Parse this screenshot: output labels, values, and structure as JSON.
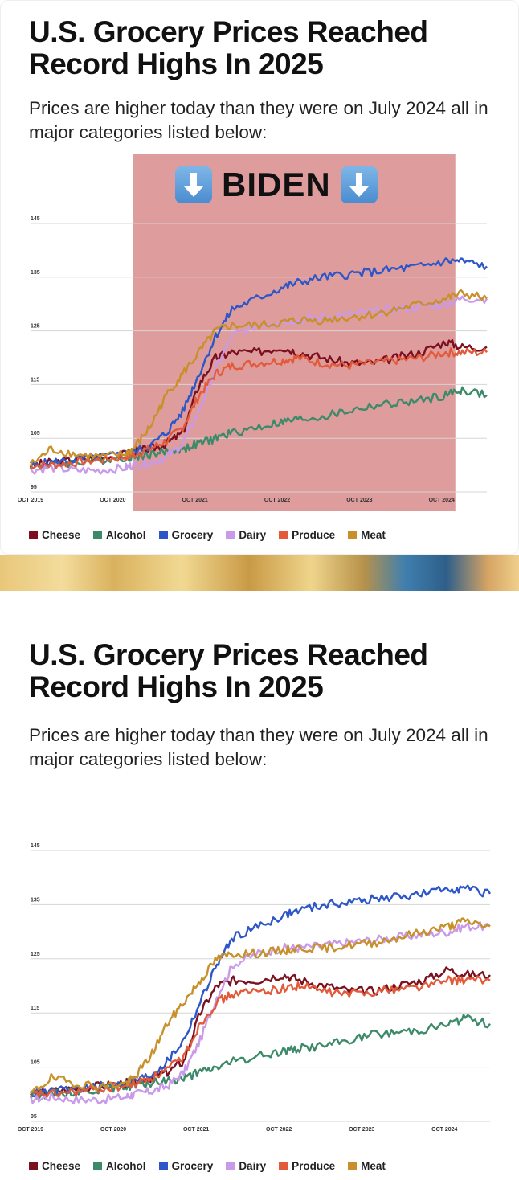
{
  "chart_data": [
    {
      "type": "line",
      "title": "U.S. Grocery Prices Reached Record Highs In 2025",
      "subtitle": "Prices are higher today than they were on July 2024 all in major categories listed below:",
      "annotation": "BIDEN",
      "highlight_range": [
        "2021-01",
        "2024-12"
      ],
      "highlight_color": "#d98b8b",
      "x_ticks": [
        "OCT 2019",
        "OCT 2020",
        "OCT 2021",
        "OCT 2022",
        "OCT 2023",
        "OCT 2024"
      ],
      "y_ticks": [
        95,
        105,
        115,
        125,
        135,
        145
      ],
      "ylim": [
        95,
        145
      ],
      "xlim": [
        2019.75,
        2025.3
      ],
      "grid": true,
      "legend_position": "bottom",
      "x": [
        2019.75,
        2020.0,
        2020.3,
        2020.6,
        2020.9,
        2021.0,
        2021.2,
        2021.4,
        2021.6,
        2021.8,
        2022.0,
        2022.2,
        2022.5,
        2022.8,
        2023.0,
        2023.3,
        2023.6,
        2023.9,
        2024.2,
        2024.5,
        2024.8,
        2025.0,
        2025.3
      ],
      "series": [
        {
          "name": "Cheese",
          "color": "#7a1020",
          "values": [
            100,
            100.5,
            101,
            101.5,
            102,
            102.5,
            103,
            104,
            106,
            115,
            120,
            121,
            121,
            122,
            121,
            120,
            119,
            119,
            120,
            121,
            123,
            122,
            122
          ]
        },
        {
          "name": "Alcohol",
          "color": "#3d8a6a",
          "values": [
            100,
            100,
            100.5,
            101,
            101.5,
            101.5,
            102,
            102.5,
            103,
            104,
            105,
            106,
            107,
            108,
            108.5,
            109,
            110,
            111,
            111.5,
            112,
            113,
            114,
            113
          ]
        },
        {
          "name": "Grocery",
          "color": "#2d56c8",
          "values": [
            100,
            100.5,
            101,
            101.5,
            102,
            102.5,
            103.5,
            106,
            110,
            117,
            124,
            129,
            131,
            133,
            134,
            135,
            135.5,
            136,
            136.5,
            137,
            138,
            138,
            137
          ]
        },
        {
          "name": "Dairy",
          "color": "#c99ae8",
          "values": [
            99,
            99.5,
            99,
            99,
            99.5,
            100,
            100.5,
            101.5,
            104,
            110,
            118,
            124,
            126,
            127,
            127,
            127.5,
            128,
            128.5,
            129,
            129.5,
            130,
            131,
            131
          ]
        },
        {
          "name": "Produce",
          "color": "#e25a3a",
          "values": [
            100,
            100,
            100.5,
            101,
            101.5,
            102,
            103,
            104.5,
            107,
            113,
            117,
            118.5,
            119,
            119.5,
            120,
            119,
            118.5,
            119,
            119.5,
            120,
            121,
            121,
            121
          ]
        },
        {
          "name": "Meat",
          "color": "#c8902a",
          "values": [
            100,
            103,
            102,
            101.5,
            102,
            103,
            107,
            113,
            117,
            121,
            125,
            126,
            126,
            126.5,
            127,
            127,
            127.5,
            128,
            129,
            130,
            131,
            132,
            131
          ]
        }
      ]
    },
    {
      "type": "line",
      "title": "U.S. Grocery Prices Reached Record Highs In 2025",
      "subtitle": "Prices are higher today than they were on July 2024 all in major categories listed below:",
      "x_ticks": [
        "OCT 2019",
        "OCT 2020",
        "OCT 2021",
        "OCT 2022",
        "OCT 2023",
        "OCT 2024"
      ],
      "y_ticks": [
        95,
        105,
        115,
        125,
        135,
        145
      ],
      "ylim": [
        95,
        145
      ],
      "xlim": [
        2019.75,
        2025.3
      ],
      "grid": true,
      "legend_position": "bottom",
      "x": [
        2019.75,
        2020.0,
        2020.3,
        2020.6,
        2020.9,
        2021.0,
        2021.2,
        2021.4,
        2021.6,
        2021.8,
        2022.0,
        2022.2,
        2022.5,
        2022.8,
        2023.0,
        2023.3,
        2023.6,
        2023.9,
        2024.2,
        2024.5,
        2024.8,
        2025.0,
        2025.3
      ],
      "series": [
        {
          "name": "Cheese",
          "color": "#7a1020",
          "values": [
            100,
            100.5,
            101,
            101.5,
            102,
            102.5,
            103,
            104,
            106,
            115,
            120,
            121,
            121,
            122,
            121,
            120,
            119,
            119,
            120,
            121,
            123,
            122,
            122
          ]
        },
        {
          "name": "Alcohol",
          "color": "#3d8a6a",
          "values": [
            100,
            100,
            100.5,
            101,
            101.5,
            101.5,
            102,
            102.5,
            103,
            104,
            105,
            106,
            107,
            108,
            108.5,
            109,
            110,
            111,
            111.5,
            112,
            113,
            114,
            113
          ]
        },
        {
          "name": "Grocery",
          "color": "#2d56c8",
          "values": [
            100,
            100.5,
            101,
            101.5,
            102,
            102.5,
            103.5,
            106,
            110,
            117,
            124,
            129,
            131,
            133,
            134,
            135,
            135.5,
            136,
            136.5,
            137,
            138,
            138,
            137
          ]
        },
        {
          "name": "Dairy",
          "color": "#c99ae8",
          "values": [
            99,
            99.5,
            99,
            99,
            99.5,
            100,
            100.5,
            101.5,
            104,
            110,
            118,
            124,
            126,
            127,
            127,
            127.5,
            128,
            128.5,
            129,
            129.5,
            130,
            131,
            131
          ]
        },
        {
          "name": "Produce",
          "color": "#e25a3a",
          "values": [
            100,
            100,
            100.5,
            101,
            101.5,
            102,
            103,
            104.5,
            107,
            113,
            117,
            118.5,
            119,
            119.5,
            120,
            119,
            118.5,
            119,
            119.5,
            120,
            121,
            121,
            121
          ]
        },
        {
          "name": "Meat",
          "color": "#c8902a",
          "values": [
            100,
            103,
            102,
            101.5,
            102,
            103,
            107,
            113,
            117,
            121,
            125,
            126,
            126,
            126.5,
            127,
            127,
            127.5,
            128,
            129,
            130,
            131,
            132,
            131
          ]
        }
      ]
    }
  ]
}
